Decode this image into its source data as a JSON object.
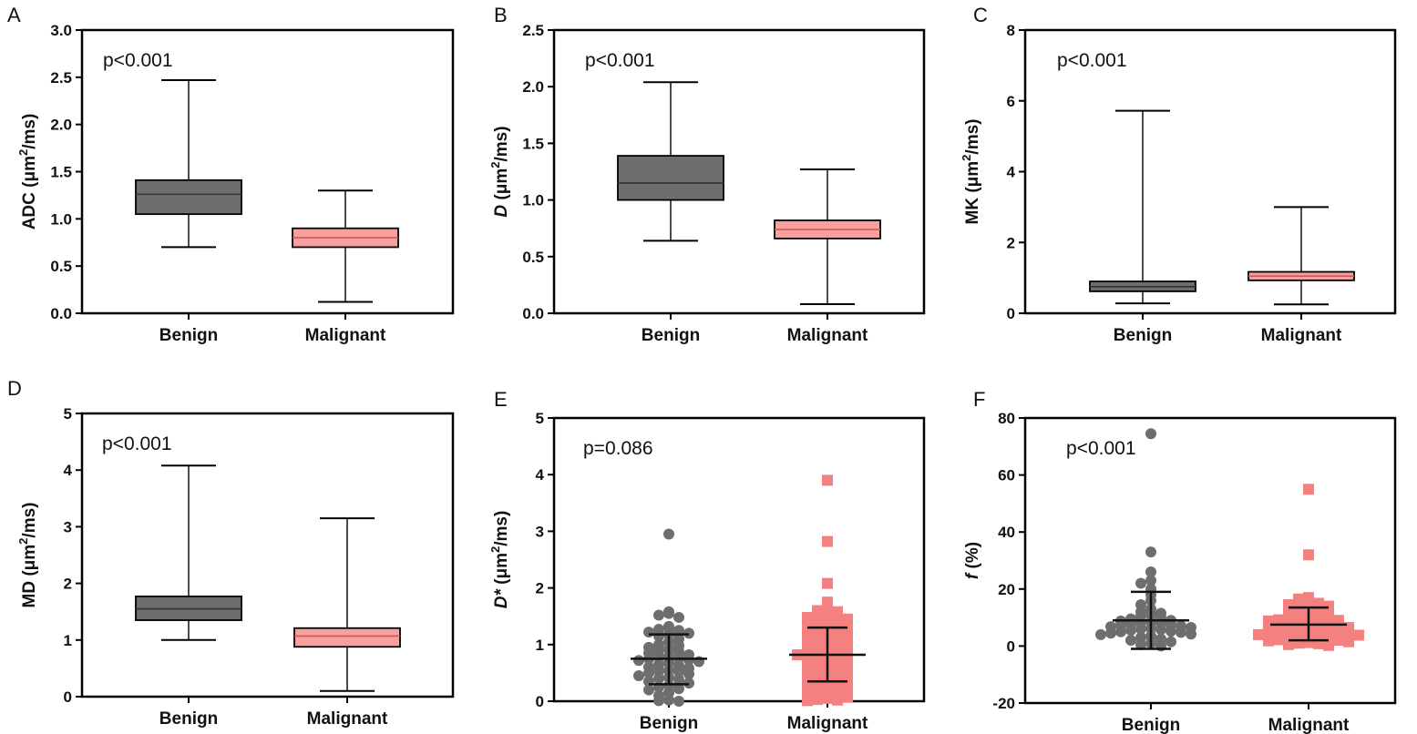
{
  "colors": {
    "benign": "#6e6e6e",
    "malignant": "#f48080",
    "malignant_box": "#f7a0a0",
    "axis": "#000000"
  },
  "chart_data": [
    {
      "panel": "A",
      "type": "box",
      "p_value": "p<0.001",
      "ylabel": {
        "pre": "ADC (μm",
        "sup": "2",
        "post": "/ms)",
        "italic": false
      },
      "ylim": [
        0,
        3.0
      ],
      "yticks": [
        0.0,
        0.5,
        1.0,
        1.5,
        2.0,
        2.5,
        3.0
      ],
      "ytick_labels": [
        "0.0",
        "0.5",
        "1.0",
        "1.5",
        "2.0",
        "2.5",
        "3.0"
      ],
      "categories": [
        "Benign",
        "Malignant"
      ],
      "boxes": [
        {
          "min": 0.7,
          "q1": 1.05,
          "median": 1.26,
          "q3": 1.41,
          "max": 2.47
        },
        {
          "min": 0.12,
          "q1": 0.7,
          "median": 0.8,
          "q3": 0.9,
          "max": 1.3
        }
      ]
    },
    {
      "panel": "B",
      "type": "box",
      "p_value": "p<0.001",
      "ylabel": {
        "pre": "D",
        "mid": " (μm",
        "sup": "2",
        "post": "/ms)",
        "italic": true
      },
      "ylim": [
        0,
        2.5
      ],
      "yticks": [
        0.0,
        0.5,
        1.0,
        1.5,
        2.0,
        2.5
      ],
      "ytick_labels": [
        "0.0",
        "0.5",
        "1.0",
        "1.5",
        "2.0",
        "2.5"
      ],
      "categories": [
        "Benign",
        "Malignant"
      ],
      "boxes": [
        {
          "min": 0.64,
          "q1": 1.0,
          "median": 1.15,
          "q3": 1.39,
          "max": 2.04
        },
        {
          "min": 0.08,
          "q1": 0.66,
          "median": 0.74,
          "q3": 0.82,
          "max": 1.27
        }
      ]
    },
    {
      "panel": "C",
      "type": "box",
      "p_value": "p<0.001",
      "ylabel": {
        "pre": "MK (μm",
        "sup": "2",
        "post": "/ms)",
        "italic": false
      },
      "ylim": [
        0,
        8
      ],
      "yticks": [
        0,
        2,
        4,
        6,
        8
      ],
      "ytick_labels": [
        "0",
        "2",
        "4",
        "6",
        "8"
      ],
      "categories": [
        "Benign",
        "Malignant"
      ],
      "boxes": [
        {
          "min": 0.28,
          "q1": 0.62,
          "median": 0.75,
          "q3": 0.9,
          "max": 5.72
        },
        {
          "min": 0.25,
          "q1": 0.93,
          "median": 1.05,
          "q3": 1.17,
          "max": 3.0
        }
      ]
    },
    {
      "panel": "D",
      "type": "box",
      "p_value": "p<0.001",
      "ylabel": {
        "pre": "MD (μm",
        "sup": "2",
        "post": "/ms)",
        "italic": false
      },
      "ylim": [
        0,
        5
      ],
      "yticks": [
        0,
        1,
        2,
        3,
        4,
        5
      ],
      "ytick_labels": [
        "0",
        "1",
        "2",
        "3",
        "4",
        "5"
      ],
      "categories": [
        "Benign",
        "Malignant"
      ],
      "boxes": [
        {
          "min": 1.0,
          "q1": 1.35,
          "median": 1.55,
          "q3": 1.77,
          "max": 4.08
        },
        {
          "min": 0.1,
          "q1": 0.88,
          "median": 1.07,
          "q3": 1.21,
          "max": 3.15
        }
      ]
    },
    {
      "panel": "E",
      "type": "scatter",
      "p_value": "p=0.086",
      "ylabel": {
        "pre": "D*",
        "mid": " (μm",
        "sup": "2",
        "post": "/ms)",
        "italic": true
      },
      "ylim": [
        0,
        5
      ],
      "yticks": [
        0,
        1,
        2,
        3,
        4,
        5
      ],
      "ytick_labels": [
        "0",
        "1",
        "2",
        "3",
        "4",
        "5"
      ],
      "categories": [
        "Benign",
        "Malignant"
      ],
      "groups": [
        {
          "mean": 0.75,
          "sd_low": 0.3,
          "sd_high": 1.18,
          "values": [
            2.95,
            1.58,
            1.55,
            1.52,
            1.48,
            1.32,
            1.3,
            1.27,
            1.25,
            1.22,
            1.2,
            1.18,
            1.15,
            1.1,
            1.05,
            1.0,
            0.98,
            0.95,
            0.92,
            0.9,
            0.88,
            0.85,
            0.82,
            0.8,
            0.78,
            0.76,
            0.75,
            0.73,
            0.72,
            0.7,
            0.68,
            0.65,
            0.63,
            0.6,
            0.58,
            0.55,
            0.53,
            0.52,
            0.5,
            0.48,
            0.45,
            0.42,
            0.4,
            0.38,
            0.35,
            0.32,
            0.28,
            0.25,
            0.22,
            0.2,
            0.15,
            0.1,
            0.02,
            0.01,
            0.0
          ]
        },
        {
          "mean": 0.82,
          "sd_low": 0.35,
          "sd_high": 1.3,
          "values": [
            3.9,
            2.82,
            2.08,
            1.75,
            1.62,
            1.6,
            1.58,
            1.55,
            1.52,
            1.5,
            1.48,
            1.45,
            1.42,
            1.4,
            1.38,
            1.35,
            1.32,
            1.3,
            1.28,
            1.25,
            1.22,
            1.2,
            1.18,
            1.15,
            1.12,
            1.1,
            1.08,
            1.05,
            1.02,
            1.0,
            0.98,
            0.95,
            0.92,
            0.9,
            0.88,
            0.85,
            0.83,
            0.82,
            0.8,
            0.78,
            0.75,
            0.73,
            0.7,
            0.68,
            0.65,
            0.62,
            0.6,
            0.58,
            0.55,
            0.52,
            0.5,
            0.48,
            0.45,
            0.42,
            0.4,
            0.38,
            0.35,
            0.32,
            0.3,
            0.28,
            0.25,
            0.22,
            0.2,
            0.18,
            0.15,
            0.12,
            0.1,
            0.08,
            0.05,
            0.03,
            0.02,
            0.01
          ]
        }
      ]
    },
    {
      "panel": "F",
      "type": "scatter",
      "p_value": "p<0.001",
      "ylabel": {
        "pre": "f",
        "mid": " (%)",
        "sup": "",
        "post": "",
        "italic": true
      },
      "ylim": [
        -20,
        80
      ],
      "yticks": [
        -20,
        0,
        20,
        40,
        60,
        80
      ],
      "ytick_labels": [
        "-20",
        "0",
        "20",
        "40",
        "60",
        "80"
      ],
      "categories": [
        "Benign",
        "Malignant"
      ],
      "groups": [
        {
          "mean": 9.0,
          "sd_low": -1.0,
          "sd_high": 19.0,
          "values": [
            74.5,
            33.0,
            26.0,
            23.0,
            22.0,
            20.0,
            18.0,
            16.0,
            14.5,
            13.0,
            12.0,
            11.5,
            11.0,
            10.5,
            10.0,
            9.5,
            9.0,
            8.8,
            8.5,
            8.2,
            8.0,
            7.8,
            7.5,
            7.2,
            7.0,
            6.8,
            6.5,
            6.2,
            6.0,
            5.8,
            5.5,
            5.2,
            5.0,
            4.8,
            4.5,
            4.2,
            4.0,
            3.5,
            3.0,
            2.5,
            2.0,
            1.5,
            1.0,
            0.5,
            0.0
          ]
        },
        {
          "mean": 7.5,
          "sd_low": 2.0,
          "sd_high": 13.5,
          "values": [
            55.0,
            32.0,
            17.0,
            16.5,
            16.0,
            15.5,
            15.0,
            14.5,
            14.0,
            13.5,
            13.0,
            12.5,
            12.0,
            11.5,
            11.0,
            10.5,
            10.0,
            9.8,
            9.5,
            9.2,
            9.0,
            8.8,
            8.5,
            8.2,
            8.0,
            7.8,
            7.5,
            7.2,
            7.0,
            6.8,
            6.5,
            6.2,
            6.0,
            5.8,
            5.5,
            5.2,
            5.0,
            4.8,
            4.5,
            4.2,
            4.0,
            3.8,
            3.5,
            3.2,
            3.0,
            2.8,
            2.5,
            2.2,
            2.0,
            1.8,
            1.5,
            1.2,
            1.0,
            0.8,
            0.5,
            0.2
          ]
        }
      ]
    }
  ]
}
